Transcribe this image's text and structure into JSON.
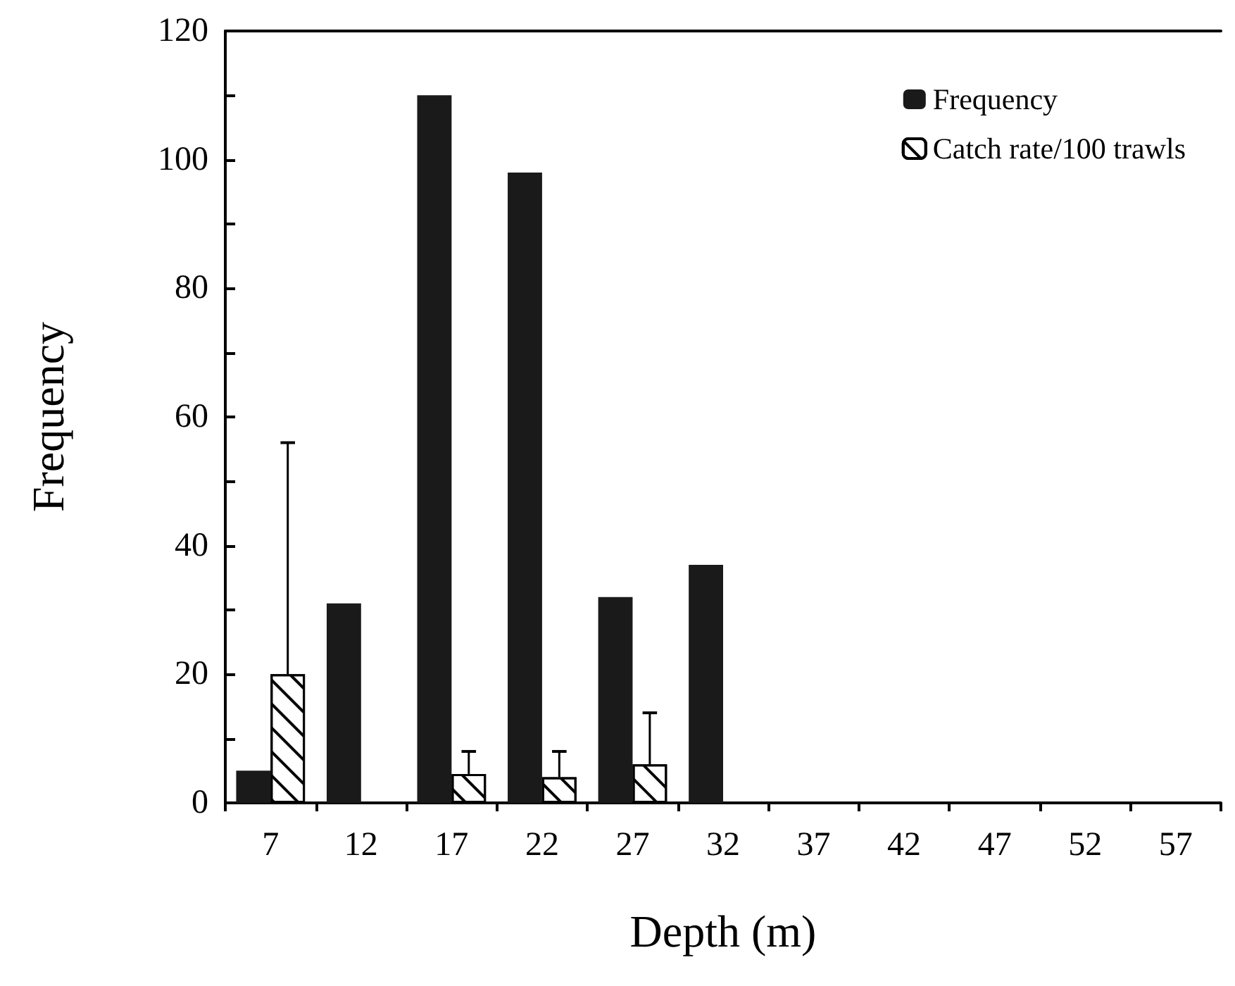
{
  "chart_data": {
    "type": "bar",
    "xlabel": "Depth (m)",
    "ylabel": "Frequency",
    "categories": [
      "7",
      "12",
      "17",
      "22",
      "27",
      "32",
      "37",
      "42",
      "47",
      "52",
      "57"
    ],
    "series": [
      {
        "name": "Frequency",
        "color": "#1a1a1a",
        "values": [
          5,
          31,
          110,
          98,
          32,
          37,
          null,
          null,
          null,
          null,
          null
        ]
      },
      {
        "name": "Catch rate/100 trawls",
        "color": "#ffffff",
        "values": [
          20,
          null,
          4.5,
          4,
          6,
          null,
          null,
          null,
          null,
          null,
          null
        ],
        "errors": [
          [
            20,
            56
          ],
          null,
          [
            4.5,
            8
          ],
          [
            4,
            8
          ],
          [
            6,
            14
          ],
          null,
          null,
          null,
          null,
          null,
          null
        ]
      }
    ],
    "ylim": [
      0,
      120
    ],
    "yticks": [
      0,
      {
        "value": 10,
        "label": null
      },
      20,
      {
        "value": 30,
        "label": null
      },
      40,
      {
        "value": 50,
        "label": null
      },
      60,
      {
        "value": 70,
        "label": null
      },
      80,
      {
        "value": 90,
        "label": null
      },
      100,
      {
        "value": 110,
        "label": null
      },
      120
    ],
    "grid": false,
    "legend": "top right"
  }
}
